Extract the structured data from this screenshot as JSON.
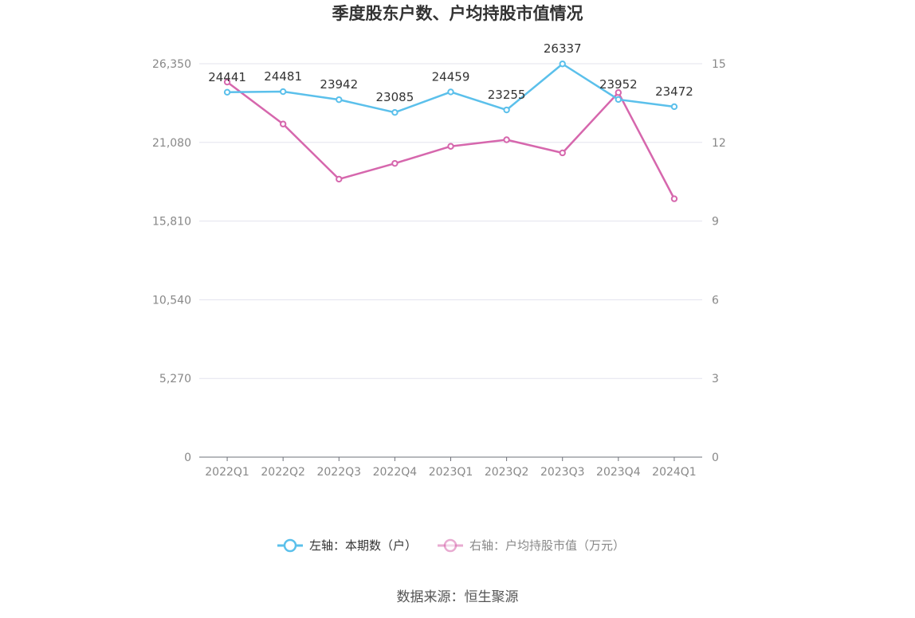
{
  "chart_data": {
    "type": "line",
    "title": "季度股东户数、户均持股市值情况",
    "categories": [
      "2022Q1",
      "2022Q2",
      "2022Q3",
      "2022Q4",
      "2023Q1",
      "2023Q2",
      "2023Q3",
      "2023Q4",
      "2024Q1"
    ],
    "left_axis": {
      "ticks": [
        "0",
        "5,270",
        "10,540",
        "15,810",
        "21,080",
        "26,350"
      ],
      "ylim": [
        0,
        26350
      ]
    },
    "right_axis": {
      "ticks": [
        "0",
        "3",
        "6",
        "9",
        "12",
        "15"
      ],
      "ylim": [
        0,
        15
      ]
    },
    "series": [
      {
        "name": "左轴：本期数（户）",
        "axis": "left",
        "color": "#5bc0eb",
        "values": [
          24441,
          24481,
          23942,
          23085,
          24459,
          23255,
          26337,
          23952,
          23472
        ],
        "labels": [
          "24441",
          "24481",
          "23942",
          "23085",
          "24459",
          "23255",
          "26337",
          "23952",
          "23472"
        ]
      },
      {
        "name": "右轴：户均持股市值（万元）",
        "axis": "right",
        "color": "#d667ad",
        "values": [
          14.3,
          12.7,
          10.6,
          11.2,
          11.85,
          12.1,
          11.6,
          13.9,
          9.85
        ]
      }
    ],
    "legend_position": "bottom-center",
    "grid": true
  },
  "source": "数据来源：恒生聚源"
}
